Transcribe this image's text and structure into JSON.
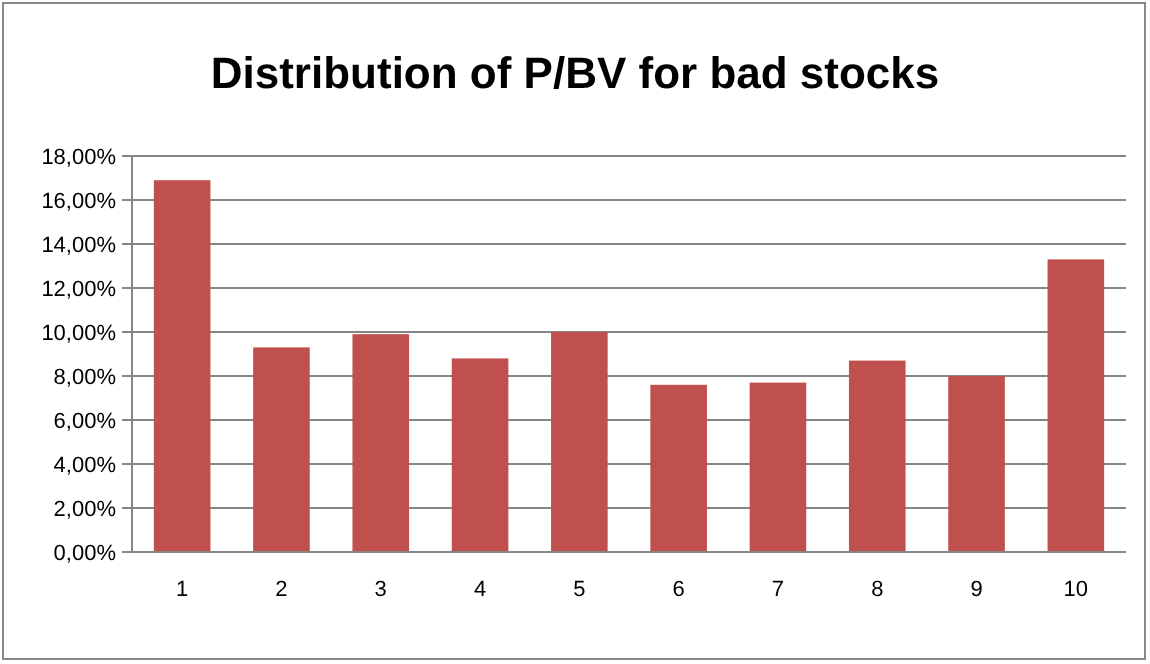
{
  "chart_data": {
    "type": "bar",
    "title": "Distribution of P/BV for bad stocks",
    "categories": [
      "1",
      "2",
      "3",
      "4",
      "5",
      "6",
      "7",
      "8",
      "9",
      "10"
    ],
    "values": [
      16.9,
      9.3,
      9.9,
      8.8,
      10.0,
      7.6,
      7.7,
      8.7,
      8.0,
      13.3
    ],
    "color": "#c0504d",
    "ylim": [
      0,
      18
    ],
    "yticks": [
      {
        "value": 0,
        "label": "0,00%"
      },
      {
        "value": 2,
        "label": "2,00%"
      },
      {
        "value": 4,
        "label": "4,00%"
      },
      {
        "value": 6,
        "label": "6,00%"
      },
      {
        "value": 8,
        "label": "8,00%"
      },
      {
        "value": 10,
        "label": "10,00%"
      },
      {
        "value": 12,
        "label": "12,00%"
      },
      {
        "value": 14,
        "label": "14,00%"
      },
      {
        "value": 16,
        "label": "16,00%"
      },
      {
        "value": 18,
        "label": "18,00%"
      }
    ],
    "grid": "y"
  }
}
